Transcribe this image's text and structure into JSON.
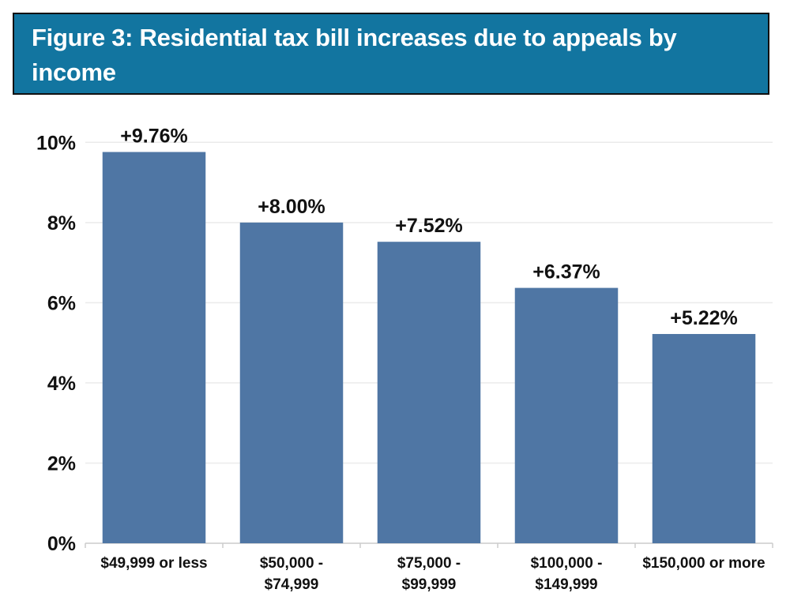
{
  "chart_data": {
    "type": "bar",
    "title": "Figure 3: Residential tax bill increases due to appeals by income",
    "xlabel": "",
    "ylabel": "",
    "categories": [
      [
        "$49,999 or less"
      ],
      [
        "$50,000 -",
        "$74,999"
      ],
      [
        "$75,000 -",
        "$99,999"
      ],
      [
        "$100,000 -",
        "$149,999"
      ],
      [
        "$150,000 or more"
      ]
    ],
    "values": [
      9.76,
      8.0,
      7.52,
      6.37,
      5.22
    ],
    "value_labels": [
      "+9.76%",
      "+8.00%",
      "+7.52%",
      "+6.37%",
      "+5.22%"
    ],
    "ylim": [
      0,
      10.4
    ],
    "y_ticks": [
      0,
      2,
      4,
      6,
      8,
      10
    ],
    "y_tick_labels": [
      "0%",
      "2%",
      "4%",
      "6%",
      "8%",
      "10%"
    ],
    "grid": true,
    "legend": "none"
  },
  "colors": {
    "title_background": "#1275a0",
    "title_text": "#ffffff",
    "bar": "#4f76a4",
    "gridline": "#ebebeb",
    "axis": "#cccccc",
    "text": "#111111"
  }
}
